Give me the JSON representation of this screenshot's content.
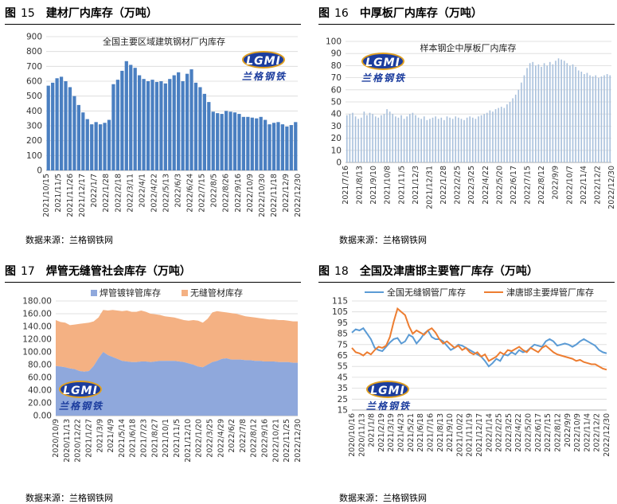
{
  "source_label": "数据来源：兰格钢铁网",
  "logo": {
    "mark": "LGMI",
    "name": "兰格钢铁"
  },
  "colors": {
    "blue": "#4a7fc1",
    "bar_light": "#a8c0dc",
    "area_blue": "#8fa8dc",
    "area_orange": "#f4b183",
    "line_blue": "#5b9bd5",
    "line_orange": "#ed7d31"
  },
  "panels": [
    {
      "fig": "图",
      "num": "15",
      "title": "建材厂内库存（万吨）"
    },
    {
      "fig": "图",
      "num": "16",
      "title": "中厚板厂内库存（万吨）"
    },
    {
      "fig": "图",
      "num": "17",
      "title": "焊管无缝管社会库存（万吨）"
    },
    {
      "fig": "图",
      "num": "18",
      "title": "全国及津唐邯主要管厂库存（万吨）"
    }
  ],
  "chart_data": [
    {
      "type": "bar",
      "legend": "全国主要区域建筑钢材厂内库存",
      "ylim": [
        0,
        900
      ],
      "yticks": [
        0,
        100,
        200,
        300,
        400,
        500,
        600,
        700,
        800,
        900
      ],
      "xticklabels": [
        "2021/10/15",
        "2021/11/5",
        "2021/11/26",
        "2021/12/17",
        "2022/1/7",
        "2022/1/28",
        "2022/2/18",
        "2022/3/11",
        "2022/4/1",
        "2022/4/22",
        "2022/5/13",
        "2022/6/3",
        "2022/6/24",
        "2022/7/15",
        "2022/8/5",
        "2022/8/26",
        "2022/9/16",
        "2022/10/9",
        "2022/10/30",
        "2022/11/18",
        "2022/12/9",
        "2022/12/30"
      ],
      "values": [
        570,
        590,
        620,
        630,
        600,
        560,
        500,
        440,
        390,
        345,
        310,
        325,
        310,
        320,
        340,
        580,
        610,
        670,
        735,
        710,
        690,
        640,
        615,
        600,
        610,
        595,
        600,
        585,
        615,
        640,
        660,
        600,
        650,
        680,
        590,
        560,
        515,
        460,
        395,
        385,
        380,
        400,
        395,
        390,
        380,
        360,
        360,
        355,
        350,
        360,
        340,
        310,
        320,
        325,
        310,
        295,
        305,
        325
      ]
    },
    {
      "type": "bar",
      "legend": "样本钢企中厚板厂内库存",
      "ylim": [
        0,
        100
      ],
      "yticks": [
        0,
        10,
        20,
        30,
        40,
        50,
        60,
        70,
        80,
        90,
        100
      ],
      "xticklabels": [
        "2021/7/16",
        "2021/8/13",
        "2021/9/10",
        "2021/10/8",
        "2021/11/5",
        "2021/12/3",
        "2021/12/31",
        "2022/1/28",
        "2022/2/25",
        "2022/3/25",
        "2022/4/22",
        "2022/5/20",
        "2022/6/17",
        "2022/7/15",
        "2022/8/12",
        "2022/9/9",
        "2022/10/7",
        "2022/11/4",
        "2022/12/2",
        "2022/12/30"
      ],
      "values": [
        39,
        40,
        41,
        38,
        36,
        37,
        42,
        39,
        41,
        40,
        38,
        37,
        39,
        40,
        44,
        42,
        40,
        38,
        37,
        39,
        36,
        38,
        40,
        41,
        39,
        37,
        36,
        38,
        35,
        36,
        37,
        38,
        36,
        37,
        35,
        38,
        37,
        36,
        38,
        37,
        36,
        35,
        37,
        38,
        37,
        36,
        38,
        39,
        40,
        41,
        43,
        42,
        44,
        45,
        46,
        45,
        48,
        50,
        53,
        56,
        60,
        66,
        72,
        78,
        82,
        83,
        80,
        81,
        79,
        82,
        80,
        83,
        81,
        84,
        86,
        85,
        84,
        82,
        80,
        81,
        79,
        76,
        75,
        73,
        74,
        72,
        71,
        72,
        70,
        71,
        72,
        73,
        72
      ]
    },
    {
      "type": "area",
      "ylim": [
        0,
        180
      ],
      "yticks": [
        "0.00",
        "20.00",
        "40.00",
        "60.00",
        "80.00",
        "100.00",
        "120.00",
        "140.00",
        "160.00",
        "180.00"
      ],
      "xticklabels": [
        "2020/10/9",
        "2020/11/13",
        "2020/12/22",
        "2021/1/27",
        "2021/3/9",
        "2021/4/9",
        "2021/5/14",
        "2021/6/18",
        "2021/7/23",
        "2021/8/27",
        "2021/10/1",
        "2021/11/5",
        "2021/12/10",
        "2022/1/20",
        "2022/3/25",
        "2022/4/29",
        "2022/6/2",
        "2022/7/8",
        "2022/8/12",
        "2022/9/16",
        "2022/10/21",
        "2022/11/25",
        "2022/12/30"
      ],
      "series": [
        {
          "name": "焊管镀锌管库存",
          "values": [
            78,
            77,
            76,
            74,
            73,
            70,
            69,
            70,
            78,
            90,
            100,
            95,
            92,
            89,
            86,
            85,
            84,
            84,
            85,
            85,
            84,
            85,
            86,
            86,
            86,
            86,
            85,
            84,
            82,
            80,
            77,
            76,
            80,
            84,
            86,
            89,
            90,
            88,
            88,
            88,
            87,
            87,
            86,
            86,
            85,
            85,
            85,
            84,
            84,
            84,
            83,
            83
          ]
        },
        {
          "name": "无缝管材库存",
          "values": [
            72,
            70,
            70,
            68,
            70,
            74,
            76,
            76,
            70,
            64,
            66,
            70,
            74,
            76,
            78,
            80,
            79,
            79,
            80,
            78,
            76,
            74,
            72,
            70,
            69,
            68,
            67,
            66,
            67,
            70,
            72,
            70,
            72,
            78,
            78,
            74,
            72,
            73,
            72,
            70,
            69,
            68,
            68,
            67,
            67,
            66,
            66,
            66,
            66,
            65,
            65,
            65
          ]
        }
      ]
    },
    {
      "type": "line",
      "ylim": [
        15,
        115
      ],
      "yticks": [
        15,
        25,
        35,
        45,
        55,
        65,
        75,
        85,
        95,
        105,
        115
      ],
      "xticklabels": [
        "2020/10/16",
        "2020/11/13",
        "2021/1/8",
        "2021/2/19",
        "2021/3/19",
        "2021/4/23",
        "2021/5/21",
        "2021/6/18",
        "2021/7/16",
        "2021/8/13",
        "2021/9/10",
        "2021/10/22",
        "2021/11/19",
        "2021/12/17",
        "2022/1/14",
        "2022/2/25",
        "2022/3/25",
        "2022/4/22",
        "2022/5/20",
        "2022/6/17",
        "2022/7/15",
        "2022/8/12",
        "2022/9/9",
        "2022/10/9",
        "2022/11/4",
        "2022/12/2",
        "2022/12/30"
      ],
      "series": [
        {
          "name": "全国无缝钢管厂库存",
          "values": [
            86,
            89,
            88,
            90,
            85,
            80,
            72,
            70,
            69,
            73,
            77,
            80,
            81,
            76,
            78,
            84,
            82,
            76,
            80,
            85,
            88,
            82,
            80,
            80,
            78,
            74,
            70,
            72,
            75,
            74,
            72,
            70,
            68,
            66,
            64,
            60,
            55,
            58,
            62,
            60,
            66,
            65,
            68,
            66,
            70,
            68,
            69,
            72,
            75,
            74,
            73,
            78,
            80,
            78,
            74,
            75,
            76,
            75,
            73,
            75,
            78,
            80,
            78,
            76,
            74,
            70,
            68,
            67
          ]
        },
        {
          "name": "津唐邯主要焊管厂库存",
          "values": [
            72,
            68,
            67,
            65,
            68,
            66,
            70,
            73,
            72,
            74,
            82,
            96,
            108,
            105,
            102,
            92,
            85,
            88,
            86,
            84,
            88,
            90,
            86,
            80,
            76,
            78,
            75,
            72,
            74,
            70,
            72,
            68,
            66,
            68,
            64,
            66,
            60,
            62,
            64,
            68,
            66,
            70,
            69,
            71,
            73,
            70,
            68,
            72,
            70,
            68,
            72,
            74,
            71,
            68,
            66,
            65,
            64,
            63,
            62,
            60,
            61,
            59,
            58,
            57,
            57,
            55,
            53,
            52
          ]
        }
      ]
    }
  ]
}
